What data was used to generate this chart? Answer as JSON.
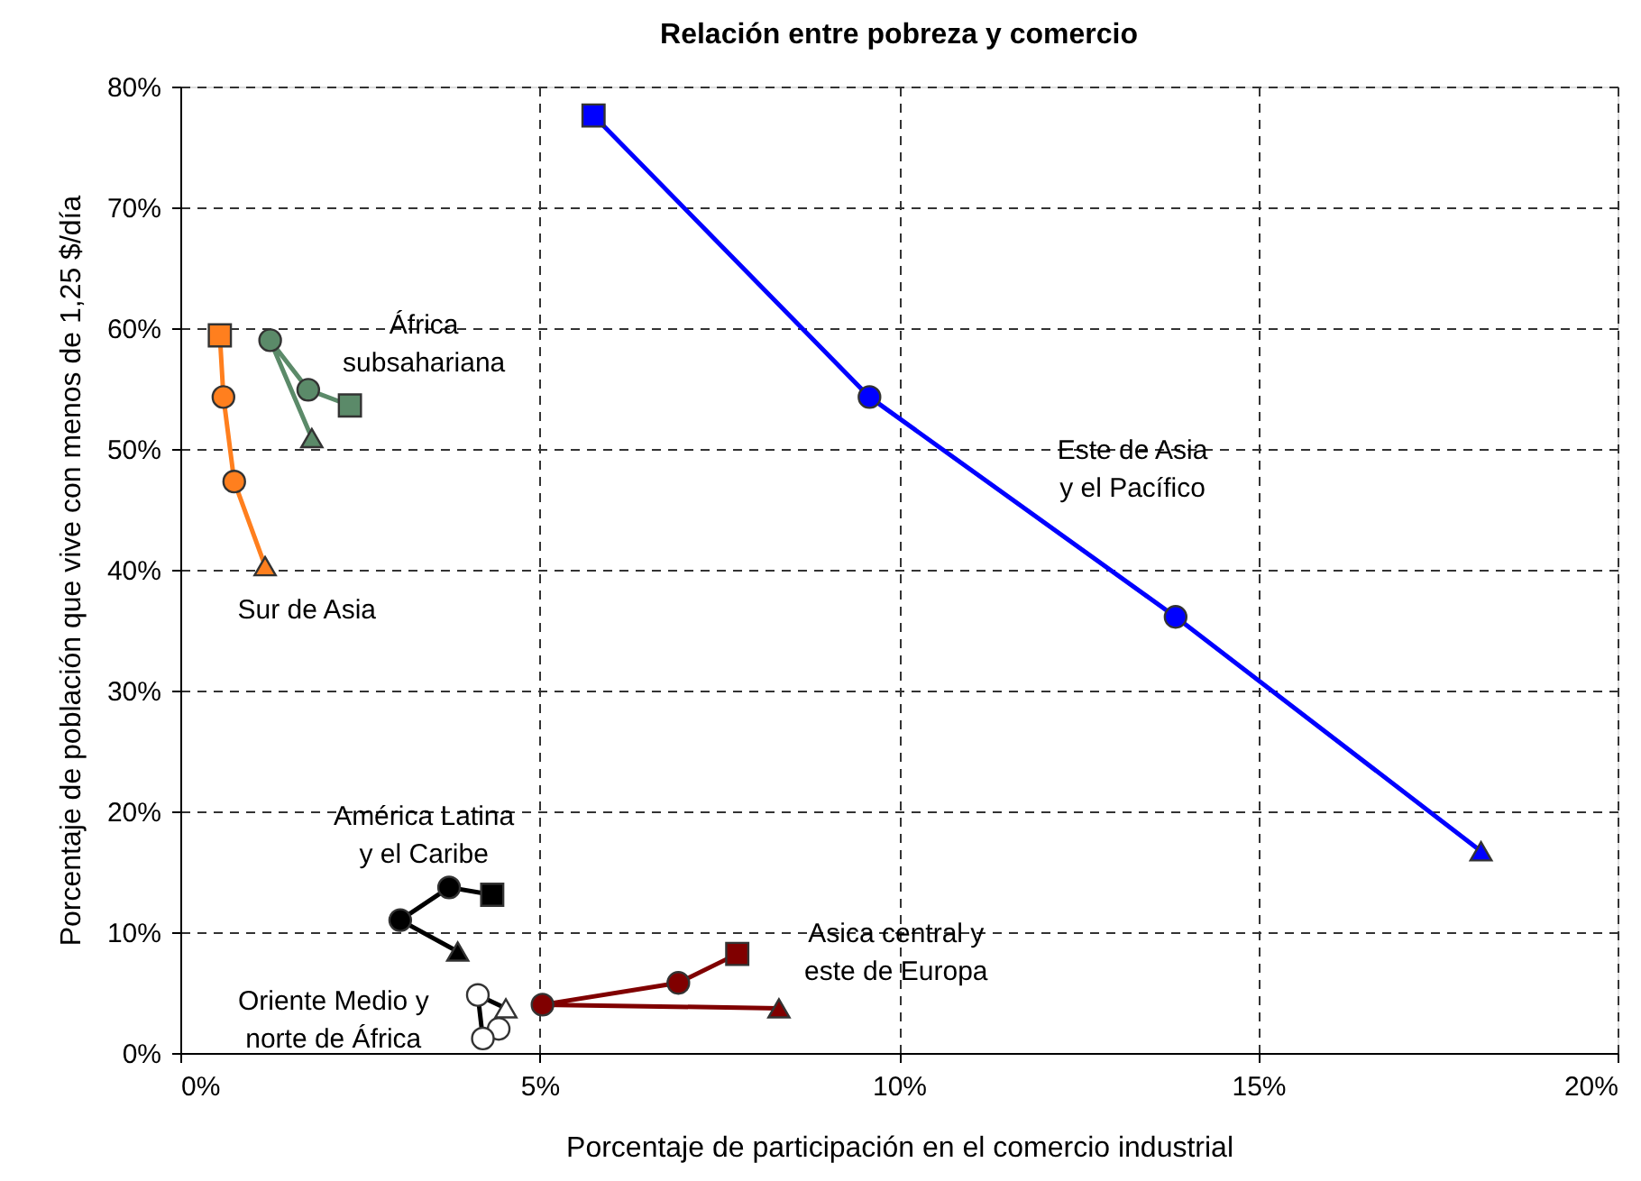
{
  "chart_data": {
    "type": "line",
    "title": "Relación entre pobreza y comercio",
    "xlabel": "Porcentaje de participación en el comercio industrial",
    "ylabel": "Porcentaje de población que vive con menos de 1,25 $/día",
    "xlim": [
      0,
      20
    ],
    "xticks": [
      {
        "value": 0,
        "label": "0%"
      },
      {
        "value": 5,
        "label": "5%"
      },
      {
        "value": 10,
        "label": "10%"
      },
      {
        "value": 15,
        "label": "15%"
      },
      {
        "value": 20,
        "label": "20%"
      }
    ],
    "ylim": [
      0,
      80
    ],
    "yticks": [
      {
        "value": 0,
        "label": "0%"
      },
      {
        "value": 10,
        "label": "10%"
      },
      {
        "value": 20,
        "label": "20%"
      },
      {
        "value": 30,
        "label": "30%"
      },
      {
        "value": 40,
        "label": "40%"
      },
      {
        "value": 50,
        "label": "50%"
      },
      {
        "value": 60,
        "label": "60%"
      },
      {
        "value": 70,
        "label": "70%"
      },
      {
        "value": 80,
        "label": "80%"
      }
    ],
    "grid": true,
    "legend": false,
    "line_style": "solid",
    "series": [
      {
        "name": "Este de Asia\ny el Pacífico",
        "color": "#0000ff",
        "x": [
          5.75,
          9.59,
          13.85,
          18.1
        ],
        "values": [
          77.6,
          54.3,
          36.1,
          16.7
        ],
        "marker": "square"
      },
      {
        "name": "Sur de Asia",
        "color": "#ff7f1e",
        "x": [
          0.55,
          0.6,
          0.75,
          1.18
        ],
        "values": [
          59.4,
          54.3,
          47.3,
          40.3
        ],
        "marker": "square"
      },
      {
        "name": "África\nsubsahariana",
        "color": "#5b8a69",
        "x": [
          2.36,
          1.78,
          1.25,
          1.83
        ],
        "values": [
          53.6,
          54.9,
          59.0,
          50.9
        ],
        "marker": "square"
      },
      {
        "name": "América Latina\ny el Caribe",
        "color": "#000000",
        "x": [
          4.34,
          3.74,
          3.06,
          3.86
        ],
        "values": [
          13.1,
          13.7,
          11.0,
          8.4
        ],
        "marker": "square"
      },
      {
        "name": "Asica central y\neste de Europa",
        "color": "#800000",
        "x": [
          7.75,
          6.93,
          5.04,
          8.33
        ],
        "values": [
          8.2,
          5.8,
          4.0,
          3.7
        ],
        "marker": "square"
      },
      {
        "name": "Oriente Medio y\nnorte de África",
        "color": "#ffffff",
        "x": [
          4.43,
          4.21,
          4.14,
          4.53
        ],
        "values": [
          2.0,
          1.2,
          4.8,
          3.7
        ],
        "marker": "circle"
      }
    ]
  }
}
